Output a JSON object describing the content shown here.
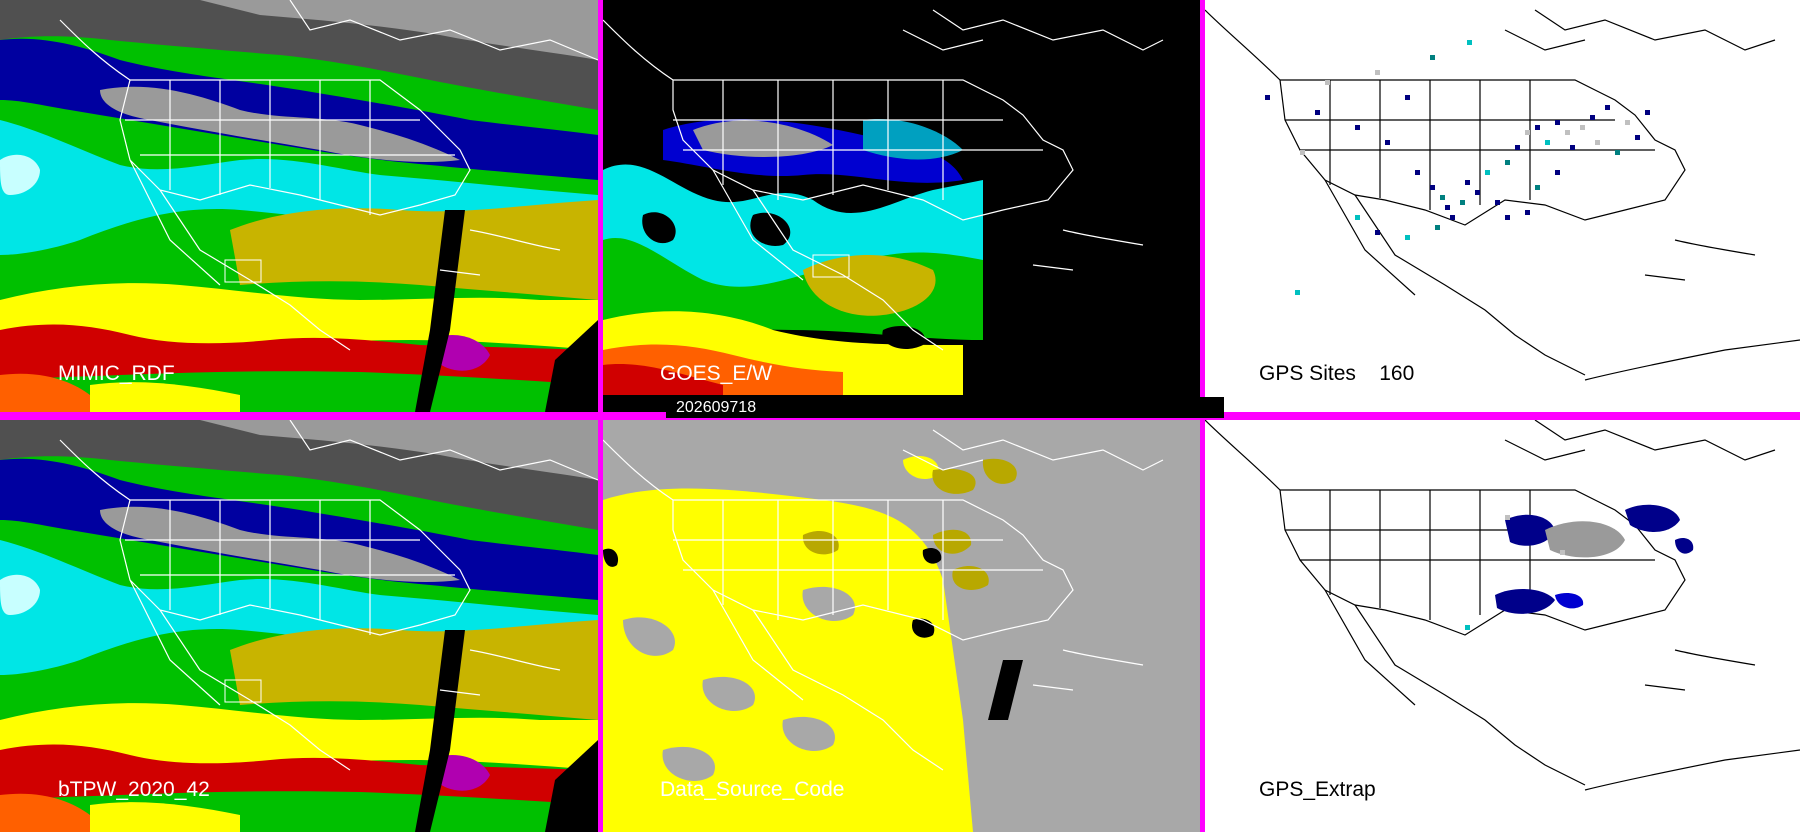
{
  "timestamp": "202609718",
  "panels": [
    {
      "label": "MIMIC_RDF"
    },
    {
      "label": "GOES_E/W"
    },
    {
      "label": "GPS Sites    160"
    },
    {
      "label": "bTPW_2020_42"
    },
    {
      "label": "Data_Source_Code"
    },
    {
      "label": "GPS_Extrap"
    }
  ],
  "colors": {
    "divider": "#ff00ff",
    "tpw_scale": [
      "#ffffff",
      "#9a9a9a",
      "#505050",
      "#000080",
      "#0000d0",
      "#0078d0",
      "#00e6e6",
      "#00c000",
      "#60ff00",
      "#c8b400",
      "#ffff00",
      "#ff6000",
      "#d00000",
      "#b000b0"
    ],
    "source_yellow": "#ffff00",
    "source_olive": "#b8a800",
    "source_gray": "#a8a8a8",
    "gps_navy": "#000080",
    "gps_teal": "#008080",
    "gps_cyan": "#00c0c0",
    "gps_gray": "#c0c0c0"
  }
}
